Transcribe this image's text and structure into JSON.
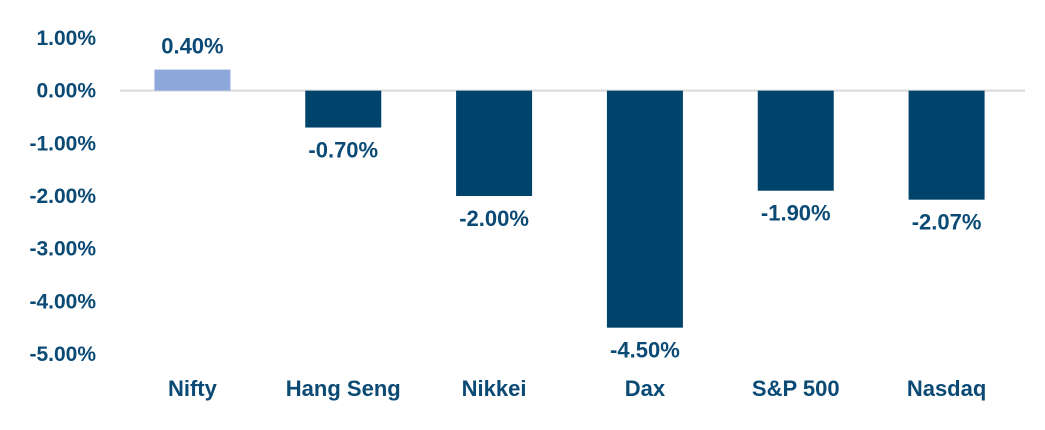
{
  "colors": {
    "negative_bar": "#00436B",
    "positive_bar": "#8FA8DC",
    "text": "#0B4A75",
    "zero_line": "#D9D9D9"
  },
  "chart_data": {
    "type": "bar",
    "title": "",
    "xlabel": "",
    "ylabel": "",
    "categories": [
      "Nifty",
      "Hang Seng",
      "Nikkei",
      "Dax",
      "S&P 500",
      "Nasdaq"
    ],
    "values": [
      0.4,
      -0.7,
      -2.0,
      -4.5,
      -1.9,
      -2.07
    ],
    "data_labels": [
      "0.40%",
      "-0.70%",
      "-2.00%",
      "-4.50%",
      "-1.90%",
      "-2.07%"
    ],
    "ylim": [
      -5.0,
      1.0
    ],
    "yticks": [
      1.0,
      0.0,
      -1.0,
      -2.0,
      -3.0,
      -4.0,
      -5.0
    ],
    "ytick_labels": [
      "1.00%",
      "0.00%",
      "-1.00%",
      "-2.00%",
      "-3.00%",
      "-4.00%",
      "-5.00%"
    ],
    "grid": false,
    "legend": "none"
  }
}
